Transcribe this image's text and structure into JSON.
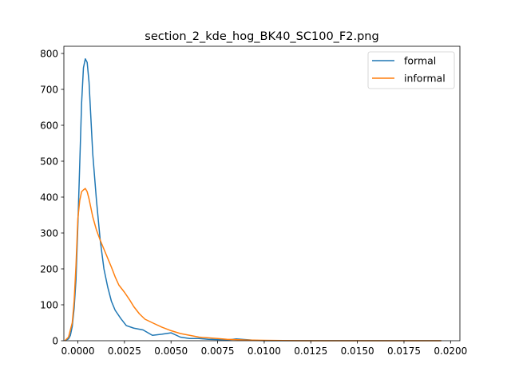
{
  "chart_data": {
    "type": "line",
    "title": "section_2_kde_hog_BK40_SC100_F2.png",
    "xlabel": "",
    "ylabel": "",
    "xlim": [
      -0.00075,
      0.0205
    ],
    "ylim": [
      0,
      820
    ],
    "xticks": [
      0.0,
      0.0025,
      0.005,
      0.0075,
      0.01,
      0.0125,
      0.015,
      0.0175,
      0.02
    ],
    "xtick_labels": [
      "0.0000",
      "0.0025",
      "0.0050",
      "0.0075",
      "0.0100",
      "0.0125",
      "0.0150",
      "0.0175",
      "0.0200"
    ],
    "yticks": [
      0,
      100,
      200,
      300,
      400,
      500,
      600,
      700,
      800
    ],
    "ytick_labels": [
      "0",
      "100",
      "200",
      "300",
      "400",
      "500",
      "600",
      "700",
      "800"
    ],
    "grid": false,
    "legend_position": "upper right",
    "series": [
      {
        "name": "formal",
        "color": "#1f77b4",
        "points": [
          [
            -0.0007,
            0
          ],
          [
            -0.0005,
            5
          ],
          [
            -0.0004,
            15
          ],
          [
            -0.0003,
            40
          ],
          [
            -0.0002,
            90
          ],
          [
            -0.0001,
            170
          ],
          [
            0.0,
            320
          ],
          [
            0.0001,
            490
          ],
          [
            0.0002,
            660
          ],
          [
            0.0003,
            760
          ],
          [
            0.0004,
            785
          ],
          [
            0.0005,
            775
          ],
          [
            0.0006,
            720
          ],
          [
            0.0007,
            620
          ],
          [
            0.0008,
            520
          ],
          [
            0.001,
            390
          ],
          [
            0.0012,
            280
          ],
          [
            0.0014,
            200
          ],
          [
            0.0016,
            150
          ],
          [
            0.0018,
            110
          ],
          [
            0.002,
            85
          ],
          [
            0.0023,
            62
          ],
          [
            0.0026,
            42
          ],
          [
            0.003,
            35
          ],
          [
            0.0035,
            30
          ],
          [
            0.004,
            15
          ],
          [
            0.0045,
            18
          ],
          [
            0.005,
            22
          ],
          [
            0.0055,
            10
          ],
          [
            0.006,
            6
          ],
          [
            0.0065,
            6
          ],
          [
            0.007,
            4
          ],
          [
            0.0075,
            3
          ],
          [
            0.008,
            2
          ],
          [
            0.0085,
            5
          ],
          [
            0.009,
            3
          ],
          [
            0.0095,
            1
          ],
          [
            0.01,
            0
          ],
          [
            0.012,
            0
          ],
          [
            0.015,
            0
          ],
          [
            0.0195,
            0
          ]
        ]
      },
      {
        "name": "informal",
        "color": "#ff7f0e",
        "points": [
          [
            -0.0007,
            0
          ],
          [
            -0.0005,
            10
          ],
          [
            -0.0003,
            50
          ],
          [
            -0.0002,
            110
          ],
          [
            -0.0001,
            210
          ],
          [
            0.0,
            340
          ],
          [
            0.0001,
            390
          ],
          [
            0.0002,
            415
          ],
          [
            0.0003,
            420
          ],
          [
            0.0004,
            424
          ],
          [
            0.0005,
            415
          ],
          [
            0.0006,
            395
          ],
          [
            0.0008,
            345
          ],
          [
            0.001,
            308
          ],
          [
            0.0012,
            280
          ],
          [
            0.0014,
            255
          ],
          [
            0.0016,
            230
          ],
          [
            0.0018,
            205
          ],
          [
            0.002,
            178
          ],
          [
            0.0022,
            155
          ],
          [
            0.0025,
            135
          ],
          [
            0.0028,
            112
          ],
          [
            0.003,
            95
          ],
          [
            0.0033,
            75
          ],
          [
            0.0036,
            60
          ],
          [
            0.004,
            50
          ],
          [
            0.0045,
            38
          ],
          [
            0.005,
            28
          ],
          [
            0.0055,
            20
          ],
          [
            0.006,
            15
          ],
          [
            0.0065,
            10
          ],
          [
            0.007,
            8
          ],
          [
            0.0075,
            6
          ],
          [
            0.008,
            4
          ],
          [
            0.009,
            2
          ],
          [
            0.01,
            1
          ],
          [
            0.012,
            0
          ],
          [
            0.015,
            0
          ],
          [
            0.0195,
            0
          ]
        ]
      }
    ]
  }
}
